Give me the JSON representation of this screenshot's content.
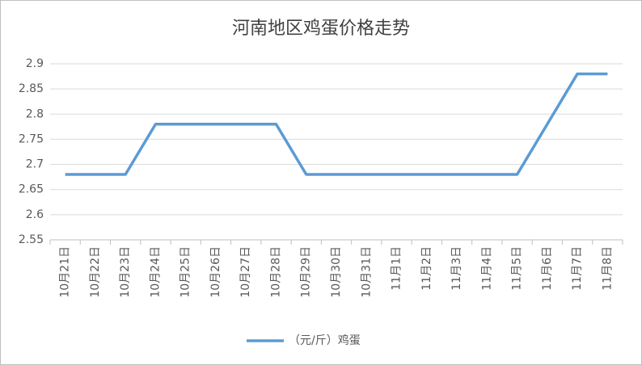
{
  "chart_data": {
    "type": "line",
    "title": "河南地区鸡蛋价格走势",
    "categories": [
      "10月21日",
      "10月22日",
      "10月23日",
      "10月24日",
      "10月25日",
      "10月26日",
      "10月27日",
      "10月28日",
      "10月29日",
      "10月30日",
      "10月31日",
      "11月1日",
      "11月2日",
      "11月3日",
      "11月4日",
      "11月5日",
      "11月6日",
      "11月7日",
      "11月8日"
    ],
    "series": [
      {
        "name": "（元/斤）鸡蛋",
        "color": "#5b9bd5",
        "values": [
          2.68,
          2.68,
          2.68,
          2.78,
          2.78,
          2.78,
          2.78,
          2.78,
          2.68,
          2.68,
          2.68,
          2.68,
          2.68,
          2.68,
          2.68,
          2.68,
          2.78,
          2.88,
          2.88
        ]
      }
    ],
    "ylim": [
      2.55,
      2.9
    ],
    "yticks": [
      2.55,
      2.6,
      2.65,
      2.7,
      2.75,
      2.8,
      2.85,
      2.9
    ],
    "grid": true,
    "legend": "bottom"
  }
}
